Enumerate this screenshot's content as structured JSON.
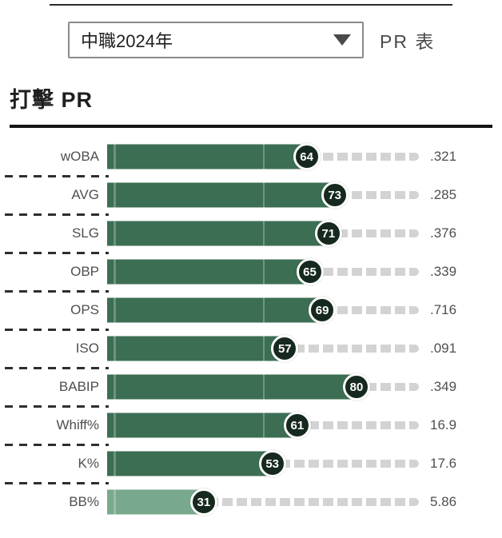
{
  "header": {
    "dropdown": {
      "value": "中職2024年"
    },
    "page_label": "PR 表"
  },
  "section": {
    "title": "打擊 PR"
  },
  "chart_data": {
    "type": "bar",
    "orientation": "horizontal",
    "title": "打擊 PR",
    "x_range": [
      0,
      100
    ],
    "bar_color_default": "#3c6e53",
    "bar_color_low": "#79a98c",
    "badge_color": "#16291e",
    "track_color": "#d3d3d3",
    "rows": [
      {
        "label": "wOBA",
        "pr": 64,
        "value": ".321"
      },
      {
        "label": "AVG",
        "pr": 73,
        "value": ".285"
      },
      {
        "label": "SLG",
        "pr": 71,
        "value": ".376"
      },
      {
        "label": "OBP",
        "pr": 65,
        "value": ".339"
      },
      {
        "label": "OPS",
        "pr": 69,
        "value": ".716"
      },
      {
        "label": "ISO",
        "pr": 57,
        "value": ".091"
      },
      {
        "label": "BABIP",
        "pr": 80,
        "value": ".349"
      },
      {
        "label": "Whiff%",
        "pr": 61,
        "value": "16.9"
      },
      {
        "label": "K%",
        "pr": 53,
        "value": "17.6"
      },
      {
        "label": "BB%",
        "pr": 31,
        "value": "5.86",
        "light": true
      }
    ]
  }
}
